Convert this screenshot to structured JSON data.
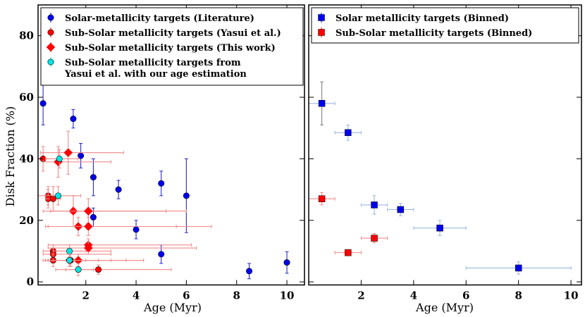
{
  "chart_data": {
    "type": "scatter",
    "ylabel": "Disk Fraction (%)",
    "ylim": [
      -1,
      90
    ],
    "yticks": [
      0,
      20,
      40,
      60,
      80
    ],
    "left": {
      "xlabel": "Age (Myr)",
      "xlim": [
        0.1,
        10.7
      ],
      "xticks": [
        2,
        4,
        6,
        8,
        10
      ],
      "legend": [
        {
          "label": "Solar-metallicity targets (Literature)",
          "color": "#0000ee",
          "marker": "circle"
        },
        {
          "label": "Sub-Solar metallicity targets (Yasui et al.)",
          "color": "#ff0000",
          "marker": "circle"
        },
        {
          "label": "Sub-Solar metallicity targets (This work)",
          "color": "#ff0000",
          "marker": "diamond"
        },
        {
          "label": "Sub-Solar metallicity targets from",
          "label2": "Yasui et al. with our age estimation",
          "color": "#00e5e5",
          "marker": "circle"
        }
      ],
      "series": [
        {
          "name": "Solar-metallicity targets (Literature)",
          "color": "#0000ee",
          "ecolor": "#2a2ac8",
          "marker": "circle",
          "points": [
            {
              "x": 0.3,
              "y": 58,
              "yerr": 7
            },
            {
              "x": 1.5,
              "y": 53,
              "yerr": 3
            },
            {
              "x": 1.8,
              "y": 41,
              "yerr": 4
            },
            {
              "x": 2.3,
              "y": 34,
              "yerr": 6
            },
            {
              "x": 2.3,
              "y": 21,
              "yerr": 3
            },
            {
              "x": 3.3,
              "y": 30,
              "yerr": 3
            },
            {
              "x": 4.0,
              "y": 17,
              "yerr": 3
            },
            {
              "x": 5.0,
              "y": 32,
              "yerr": 4
            },
            {
              "x": 5.0,
              "y": 9,
              "yerr": 3
            },
            {
              "x": 6.0,
              "y": 28,
              "yerr": 12
            },
            {
              "x": 8.5,
              "y": 3.5,
              "yerr": 2.5
            },
            {
              "x": 10.0,
              "y": 6.3,
              "yerr": 3.5
            }
          ]
        },
        {
          "name": "Sub-Solar metallicity targets (Yasui et al.)",
          "color": "#ff0000",
          "ecolor": "#f08a8a",
          "marker": "circle",
          "points": [
            {
              "x": 0.3,
              "y": 40,
              "yerr": 4,
              "xlo": 0.1,
              "xhi": 0.9
            },
            {
              "x": 0.5,
              "y": 28,
              "yerr": 3,
              "xlo": 0.1,
              "xhi": 1.0
            },
            {
              "x": 0.5,
              "y": 27,
              "yerr": 3
            },
            {
              "x": 0.7,
              "y": 27,
              "yerr": 4,
              "xlo": 0.4,
              "xhi": 1.0
            },
            {
              "x": 0.7,
              "y": 10,
              "yerr": 2,
              "xlo": 0.3,
              "xhi": 3.0
            },
            {
              "x": 0.7,
              "y": 9,
              "yerr": 2,
              "xlo": 0.3,
              "xhi": 3.0
            },
            {
              "x": 0.7,
              "y": 7,
              "yerr": 2,
              "xlo": 0.3,
              "xhi": 3.0
            },
            {
              "x": 1.4,
              "y": 7,
              "yerr": 2,
              "xlo": 0.5,
              "xhi": 2.5
            },
            {
              "x": 2.5,
              "y": 4,
              "yerr": 1.5,
              "xlo": 0.8,
              "xhi": 5.4
            }
          ]
        },
        {
          "name": "Sub-Solar metallicity targets (This work)",
          "color": "#ff0000",
          "ecolor": "#f08a8a",
          "marker": "diamond",
          "points": [
            {
              "x": 1.3,
              "y": 42,
              "yerr": 7,
              "xlo": 0.2,
              "xhi": 3.5
            },
            {
              "x": 0.9,
              "y": 39,
              "yerr": 5,
              "xlo": 0.3,
              "xhi": 3.0
            },
            {
              "x": 1.5,
              "y": 23,
              "yerr": 5,
              "xlo": 0.3,
              "xhi": 5.2
            },
            {
              "x": 2.1,
              "y": 23,
              "yerr": 4,
              "xlo": 0.6,
              "xhi": 6.0
            },
            {
              "x": 1.7,
              "y": 18,
              "yerr": 3,
              "xlo": 0.4,
              "xhi": 5.6
            },
            {
              "x": 2.1,
              "y": 18,
              "yerr": 3,
              "xlo": 0.5,
              "xhi": 7.0
            },
            {
              "x": 2.1,
              "y": 12,
              "yerr": 2,
              "xlo": 0.5,
              "xhi": 6.2
            },
            {
              "x": 2.1,
              "y": 11,
              "yerr": 2,
              "xlo": 0.5,
              "xhi": 6.4
            },
            {
              "x": 1.7,
              "y": 7,
              "yerr": 2,
              "xlo": 0.4,
              "xhi": 4.3
            },
            {
              "x": 1.35,
              "y": 7,
              "yerr": 2,
              "xlo": 0.5,
              "xhi": 3.6
            }
          ]
        },
        {
          "name": "Sub-Solar metallicity targets from Yasui et al. with our age estimation",
          "color": "#00e5e5",
          "ecolor": "#f08a8a",
          "marker": "circle",
          "points": [
            {
              "x": 0.95,
              "y": 40,
              "yerr": 3,
              "xlo": 0.4,
              "xhi": 1.7
            },
            {
              "x": 0.9,
              "y": 28,
              "yerr": 3,
              "xlo": 0.4,
              "xhi": 1.8
            },
            {
              "x": 1.35,
              "y": 10,
              "yerr": 2,
              "xlo": 0.7,
              "xhi": 2.0
            },
            {
              "x": 1.35,
              "y": 7,
              "yerr": 2,
              "xlo": 0.7,
              "xhi": 2.0
            },
            {
              "x": 1.7,
              "y": 4,
              "yerr": 2,
              "xlo": 1.2,
              "xhi": 2.3
            }
          ]
        }
      ]
    },
    "right": {
      "xlabel": "Age (Myr)",
      "xlim": [
        0,
        10.4
      ],
      "xticks": [
        2,
        4,
        6,
        8,
        10
      ],
      "legend": [
        {
          "label": "Solar metallicity targets (Binned)",
          "color": "#0000ee",
          "marker": "square"
        },
        {
          "label": "Sub-Solar metallicity targets (Binned)",
          "color": "#ff0000",
          "marker": "square"
        }
      ],
      "series": [
        {
          "name": "Solar metallicity targets (Binned)",
          "color": "#0000ee",
          "ecolor": "#9ab7dd",
          "marker": "square",
          "points": [
            {
              "x": 0.5,
              "y": 58,
              "yerr": 7,
              "xlo": 0,
              "xhi": 1.0,
              "yecolor": "#808080"
            },
            {
              "x": 1.5,
              "y": 48.5,
              "yerr": 2.5,
              "xlo": 1.0,
              "xhi": 2.0
            },
            {
              "x": 2.5,
              "y": 25,
              "yerr": 3,
              "xlo": 2.0,
              "xhi": 3.0
            },
            {
              "x": 3.5,
              "y": 23.5,
              "yerr": 2,
              "xlo": 3.0,
              "xhi": 4.0
            },
            {
              "x": 5.0,
              "y": 17.5,
              "yerr": 2.5,
              "xlo": 4.0,
              "xhi": 6.0
            },
            {
              "x": 8.0,
              "y": 4.5,
              "yerr": 2,
              "xlo": 6.0,
              "xhi": 10.0
            }
          ]
        },
        {
          "name": "Sub-Solar metallicity targets (Binned)",
          "color": "#ff0000",
          "ecolor": "#f08a8a",
          "marker": "square",
          "points": [
            {
              "x": 0.5,
              "y": 27,
              "yerr": 2,
              "xlo": 0,
              "xhi": 1.0
            },
            {
              "x": 1.5,
              "y": 9.5,
              "yerr": 1,
              "xlo": 1.0,
              "xhi": 2.0
            },
            {
              "x": 2.5,
              "y": 14.2,
              "yerr": 1.5,
              "xlo": 2.0,
              "xhi": 3.0
            }
          ]
        }
      ]
    }
  }
}
